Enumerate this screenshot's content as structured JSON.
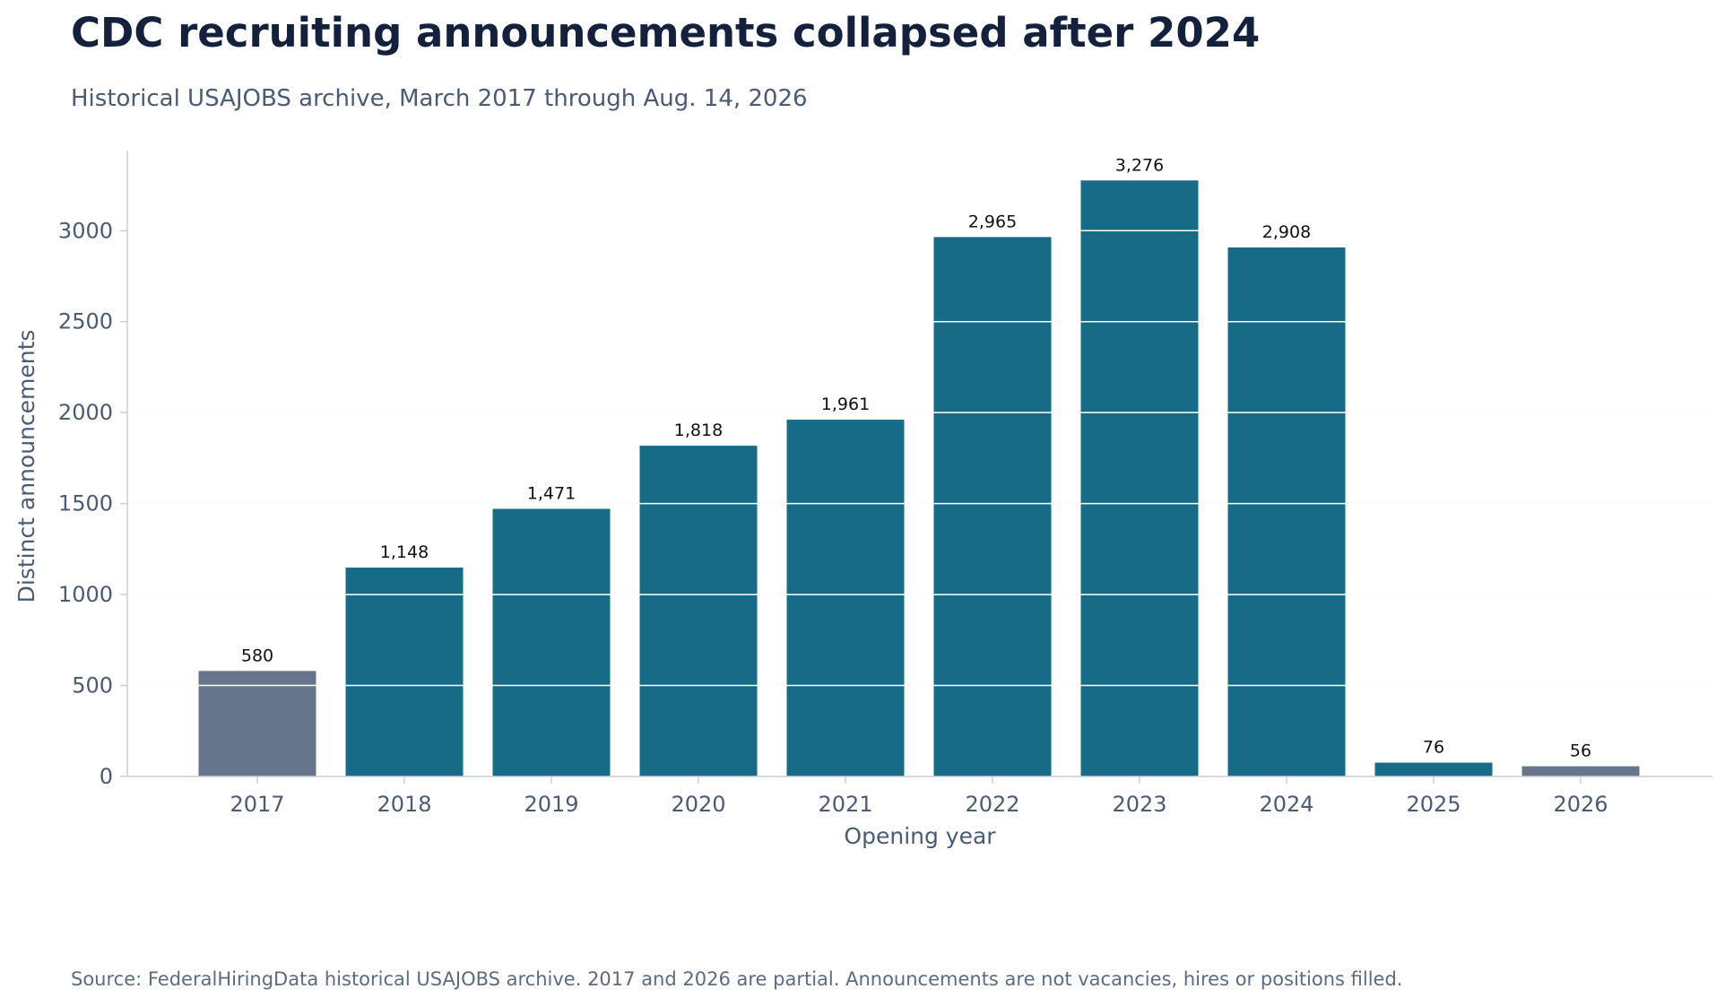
{
  "title": "CDC recruiting announcements collapsed after 2024",
  "subtitle": "Historical USAJOBS archive, March 2017 through Aug. 14, 2026",
  "source": "Source: FederalHiringData historical USAJOBS archive. 2017 and 2026 are partial. Announcements are not vacancies, hires or positions filled.",
  "colors": {
    "full_year": "#176b87",
    "partial_year": "#66758a",
    "grid": "#e3e8ef",
    "axis": "#c9cfdc",
    "inner_grid": "#ffffff"
  },
  "chart_data": {
    "type": "bar",
    "categories": [
      "2017",
      "2018",
      "2019",
      "2020",
      "2021",
      "2022",
      "2023",
      "2024",
      "2025",
      "2026"
    ],
    "values": [
      580,
      1148,
      1471,
      1818,
      1961,
      2965,
      3276,
      2908,
      76,
      56
    ],
    "value_labels": [
      "580",
      "1,148",
      "1,471",
      "1,818",
      "1,961",
      "2,965",
      "3,276",
      "2,908",
      "76",
      "56"
    ],
    "partial": [
      true,
      false,
      false,
      false,
      false,
      false,
      false,
      false,
      false,
      true
    ],
    "title": "CDC recruiting announcements collapsed after 2024",
    "subtitle": "Historical USAJOBS archive, March 2017 through Aug. 14, 2026",
    "xlabel": "Opening year",
    "ylabel": "Distinct announcements",
    "ylim": [
      0,
      3440
    ],
    "yticks": [
      0,
      500,
      1000,
      1500,
      2000,
      2500,
      3000
    ],
    "grid": "horizontal"
  }
}
